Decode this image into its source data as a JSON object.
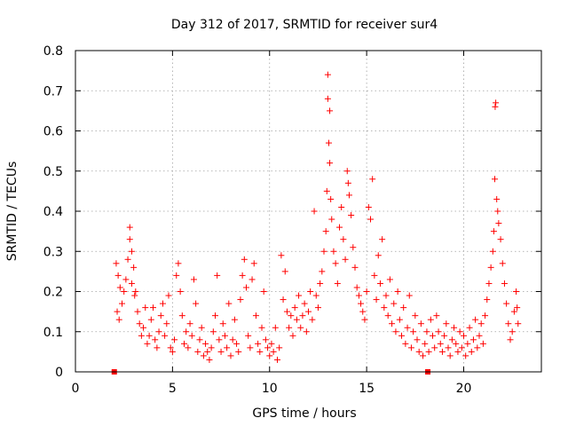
{
  "chart_data": {
    "type": "scatter",
    "title": "Day 312 of 2017, SRMTID for receiver sur4",
    "xlabel": "GPS time / hours",
    "ylabel": "SRMTID / TECUs",
    "xlim": [
      0,
      24
    ],
    "ylim": [
      0,
      0.8
    ],
    "xticks": [
      0,
      5,
      10,
      15,
      20
    ],
    "yticks": [
      0,
      0.1,
      0.2,
      0.3,
      0.4,
      0.5,
      0.6,
      0.7,
      0.8
    ],
    "xtick_labels": [
      "0",
      "5",
      "10",
      "15",
      "20"
    ],
    "ytick_labels": [
      "0",
      "0.1",
      "0.2",
      "0.3",
      "0.4",
      "0.5",
      "0.6",
      "0.7",
      "0.8"
    ],
    "grid": true,
    "marker": "plus",
    "color": "#ff0000",
    "baseline_markers": [
      {
        "x": 2.0,
        "y": 0
      },
      {
        "x": 18.15,
        "y": 0
      }
    ],
    "series": [
      {
        "name": "SRMTID",
        "points": [
          [
            2.1,
            0.27
          ],
          [
            2.2,
            0.24
          ],
          [
            2.3,
            0.21
          ],
          [
            2.15,
            0.15
          ],
          [
            2.25,
            0.13
          ],
          [
            2.4,
            0.17
          ],
          [
            2.5,
            0.2
          ],
          [
            2.6,
            0.23
          ],
          [
            2.7,
            0.28
          ],
          [
            2.8,
            0.36
          ],
          [
            2.8,
            0.33
          ],
          [
            2.9,
            0.3
          ],
          [
            3.0,
            0.26
          ],
          [
            2.9,
            0.22
          ],
          [
            3.05,
            0.19
          ],
          [
            3.1,
            0.2
          ],
          [
            3.2,
            0.15
          ],
          [
            3.3,
            0.12
          ],
          [
            3.4,
            0.09
          ],
          [
            3.5,
            0.11
          ],
          [
            3.6,
            0.16
          ],
          [
            3.7,
            0.07
          ],
          [
            3.8,
            0.09
          ],
          [
            3.9,
            0.13
          ],
          [
            4.0,
            0.16
          ],
          [
            4.1,
            0.08
          ],
          [
            4.2,
            0.06
          ],
          [
            4.3,
            0.1
          ],
          [
            4.4,
            0.14
          ],
          [
            4.5,
            0.17
          ],
          [
            4.6,
            0.09
          ],
          [
            4.7,
            0.12
          ],
          [
            4.8,
            0.19
          ],
          [
            4.9,
            0.06
          ],
          [
            5.0,
            0.05
          ],
          [
            5.1,
            0.08
          ],
          [
            5.2,
            0.24
          ],
          [
            5.3,
            0.27
          ],
          [
            5.4,
            0.2
          ],
          [
            5.5,
            0.14
          ],
          [
            5.6,
            0.07
          ],
          [
            5.7,
            0.1
          ],
          [
            5.8,
            0.06
          ],
          [
            5.9,
            0.12
          ],
          [
            6.0,
            0.09
          ],
          [
            6.1,
            0.23
          ],
          [
            6.2,
            0.17
          ],
          [
            6.3,
            0.05
          ],
          [
            6.4,
            0.08
          ],
          [
            6.5,
            0.11
          ],
          [
            6.6,
            0.04
          ],
          [
            6.7,
            0.07
          ],
          [
            6.8,
            0.05
          ],
          [
            6.9,
            0.03
          ],
          [
            7.0,
            0.06
          ],
          [
            7.1,
            0.1
          ],
          [
            7.2,
            0.14
          ],
          [
            7.3,
            0.24
          ],
          [
            7.4,
            0.08
          ],
          [
            7.5,
            0.05
          ],
          [
            7.6,
            0.12
          ],
          [
            7.7,
            0.09
          ],
          [
            7.8,
            0.06
          ],
          [
            7.9,
            0.17
          ],
          [
            8.0,
            0.04
          ],
          [
            8.1,
            0.08
          ],
          [
            8.2,
            0.13
          ],
          [
            8.3,
            0.07
          ],
          [
            8.4,
            0.05
          ],
          [
            8.5,
            0.18
          ],
          [
            8.6,
            0.24
          ],
          [
            8.7,
            0.28
          ],
          [
            8.8,
            0.21
          ],
          [
            8.9,
            0.09
          ],
          [
            9.0,
            0.06
          ],
          [
            9.1,
            0.23
          ],
          [
            9.2,
            0.27
          ],
          [
            9.3,
            0.14
          ],
          [
            9.4,
            0.07
          ],
          [
            9.5,
            0.05
          ],
          [
            9.6,
            0.11
          ],
          [
            9.7,
            0.2
          ],
          [
            9.8,
            0.08
          ],
          [
            9.9,
            0.06
          ],
          [
            10.0,
            0.04
          ],
          [
            10.1,
            0.07
          ],
          [
            10.2,
            0.05
          ],
          [
            10.3,
            0.11
          ],
          [
            10.4,
            0.03
          ],
          [
            10.5,
            0.06
          ],
          [
            10.6,
            0.29
          ],
          [
            10.7,
            0.18
          ],
          [
            10.8,
            0.25
          ],
          [
            10.9,
            0.15
          ],
          [
            11.0,
            0.11
          ],
          [
            11.1,
            0.14
          ],
          [
            11.2,
            0.09
          ],
          [
            11.3,
            0.16
          ],
          [
            11.4,
            0.13
          ],
          [
            11.5,
            0.19
          ],
          [
            11.6,
            0.11
          ],
          [
            11.7,
            0.14
          ],
          [
            11.8,
            0.17
          ],
          [
            11.9,
            0.1
          ],
          [
            12.0,
            0.15
          ],
          [
            12.1,
            0.2
          ],
          [
            12.2,
            0.13
          ],
          [
            12.3,
            0.4
          ],
          [
            12.4,
            0.19
          ],
          [
            12.5,
            0.16
          ],
          [
            12.6,
            0.22
          ],
          [
            12.7,
            0.25
          ],
          [
            12.8,
            0.3
          ],
          [
            12.9,
            0.35
          ],
          [
            12.95,
            0.45
          ],
          [
            13.0,
            0.68
          ],
          [
            13.0,
            0.74
          ],
          [
            13.05,
            0.57
          ],
          [
            13.1,
            0.52
          ],
          [
            13.1,
            0.65
          ],
          [
            13.15,
            0.43
          ],
          [
            13.2,
            0.38
          ],
          [
            13.3,
            0.3
          ],
          [
            13.4,
            0.27
          ],
          [
            13.5,
            0.22
          ],
          [
            13.6,
            0.36
          ],
          [
            13.7,
            0.41
          ],
          [
            13.8,
            0.33
          ],
          [
            13.9,
            0.28
          ],
          [
            14.0,
            0.5
          ],
          [
            14.05,
            0.47
          ],
          [
            14.1,
            0.44
          ],
          [
            14.2,
            0.39
          ],
          [
            14.3,
            0.31
          ],
          [
            14.4,
            0.26
          ],
          [
            14.5,
            0.21
          ],
          [
            14.6,
            0.19
          ],
          [
            14.7,
            0.17
          ],
          [
            14.8,
            0.15
          ],
          [
            14.9,
            0.13
          ],
          [
            15.0,
            0.2
          ],
          [
            15.1,
            0.41
          ],
          [
            15.2,
            0.38
          ],
          [
            15.3,
            0.48
          ],
          [
            15.4,
            0.24
          ],
          [
            15.5,
            0.18
          ],
          [
            15.6,
            0.29
          ],
          [
            15.7,
            0.22
          ],
          [
            15.8,
            0.33
          ],
          [
            15.9,
            0.16
          ],
          [
            16.0,
            0.19
          ],
          [
            16.1,
            0.14
          ],
          [
            16.2,
            0.23
          ],
          [
            16.3,
            0.12
          ],
          [
            16.4,
            0.17
          ],
          [
            16.5,
            0.1
          ],
          [
            16.6,
            0.2
          ],
          [
            16.7,
            0.13
          ],
          [
            16.8,
            0.09
          ],
          [
            16.9,
            0.16
          ],
          [
            17.0,
            0.07
          ],
          [
            17.1,
            0.11
          ],
          [
            17.2,
            0.19
          ],
          [
            17.3,
            0.06
          ],
          [
            17.4,
            0.1
          ],
          [
            17.5,
            0.14
          ],
          [
            17.6,
            0.08
          ],
          [
            17.7,
            0.05
          ],
          [
            17.8,
            0.12
          ],
          [
            17.9,
            0.04
          ],
          [
            18.0,
            0.07
          ],
          [
            18.1,
            0.1
          ],
          [
            18.2,
            0.05
          ],
          [
            18.3,
            0.13
          ],
          [
            18.4,
            0.09
          ],
          [
            18.5,
            0.06
          ],
          [
            18.6,
            0.14
          ],
          [
            18.7,
            0.1
          ],
          [
            18.8,
            0.07
          ],
          [
            18.9,
            0.05
          ],
          [
            19.0,
            0.09
          ],
          [
            19.1,
            0.12
          ],
          [
            19.2,
            0.06
          ],
          [
            19.3,
            0.04
          ],
          [
            19.4,
            0.08
          ],
          [
            19.5,
            0.11
          ],
          [
            19.6,
            0.07
          ],
          [
            19.7,
            0.05
          ],
          [
            19.8,
            0.1
          ],
          [
            19.9,
            0.06
          ],
          [
            20.0,
            0.09
          ],
          [
            20.1,
            0.04
          ],
          [
            20.2,
            0.07
          ],
          [
            20.3,
            0.11
          ],
          [
            20.4,
            0.05
          ],
          [
            20.5,
            0.08
          ],
          [
            20.6,
            0.13
          ],
          [
            20.7,
            0.06
          ],
          [
            20.8,
            0.09
          ],
          [
            20.9,
            0.12
          ],
          [
            21.0,
            0.07
          ],
          [
            21.1,
            0.14
          ],
          [
            21.2,
            0.18
          ],
          [
            21.3,
            0.22
          ],
          [
            21.4,
            0.26
          ],
          [
            21.5,
            0.3
          ],
          [
            21.55,
            0.35
          ],
          [
            21.6,
            0.48
          ],
          [
            21.62,
            0.66
          ],
          [
            21.65,
            0.67
          ],
          [
            21.7,
            0.43
          ],
          [
            21.75,
            0.4
          ],
          [
            21.8,
            0.37
          ],
          [
            21.9,
            0.33
          ],
          [
            22.0,
            0.27
          ],
          [
            22.1,
            0.22
          ],
          [
            22.2,
            0.17
          ],
          [
            22.3,
            0.12
          ],
          [
            22.4,
            0.08
          ],
          [
            22.5,
            0.1
          ],
          [
            22.6,
            0.15
          ],
          [
            22.7,
            0.2
          ],
          [
            22.75,
            0.16
          ],
          [
            22.8,
            0.12
          ]
        ]
      }
    ]
  }
}
